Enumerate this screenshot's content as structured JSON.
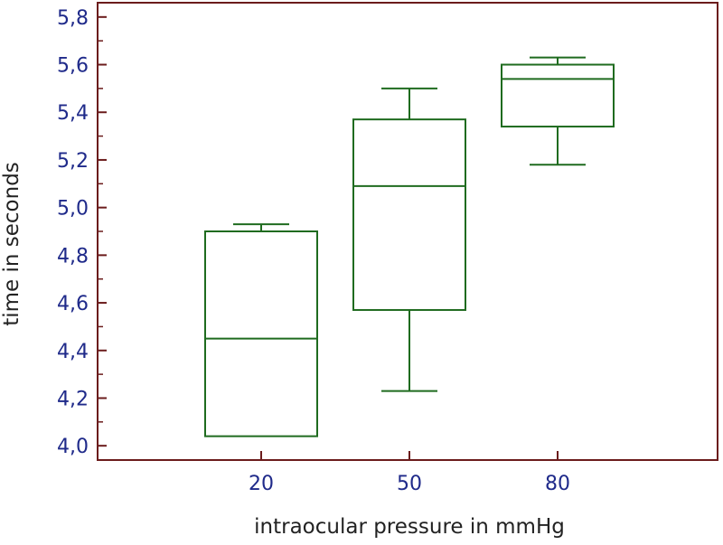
{
  "chart_data": {
    "type": "box",
    "xlabel": "intraocular pressure in mmHg",
    "ylabel": "time in seconds",
    "categories": [
      "20",
      "50",
      "80"
    ],
    "ylim": [
      3.94,
      5.86
    ],
    "yticks": [
      "4,0",
      "4,2",
      "4,4",
      "4,6",
      "4,8",
      "5,0",
      "5,2",
      "5,4",
      "5,6",
      "5,8"
    ],
    "boxes": [
      {
        "category": "20",
        "whisker_low": 4.04,
        "q1": 4.04,
        "median": 4.45,
        "q3": 4.9,
        "whisker_high": 4.93
      },
      {
        "category": "50",
        "whisker_low": 4.23,
        "q1": 4.57,
        "median": 5.09,
        "q3": 5.37,
        "whisker_high": 5.5
      },
      {
        "category": "80",
        "whisker_low": 5.18,
        "q1": 5.34,
        "median": 5.54,
        "q3": 5.6,
        "whisker_high": 5.63
      }
    ],
    "grid": false,
    "legend": "none"
  },
  "colors": {
    "axis": "#6b1c1c",
    "tick_label": "#1f2a8a",
    "box": "#1f6b1f",
    "title": "#222222"
  }
}
